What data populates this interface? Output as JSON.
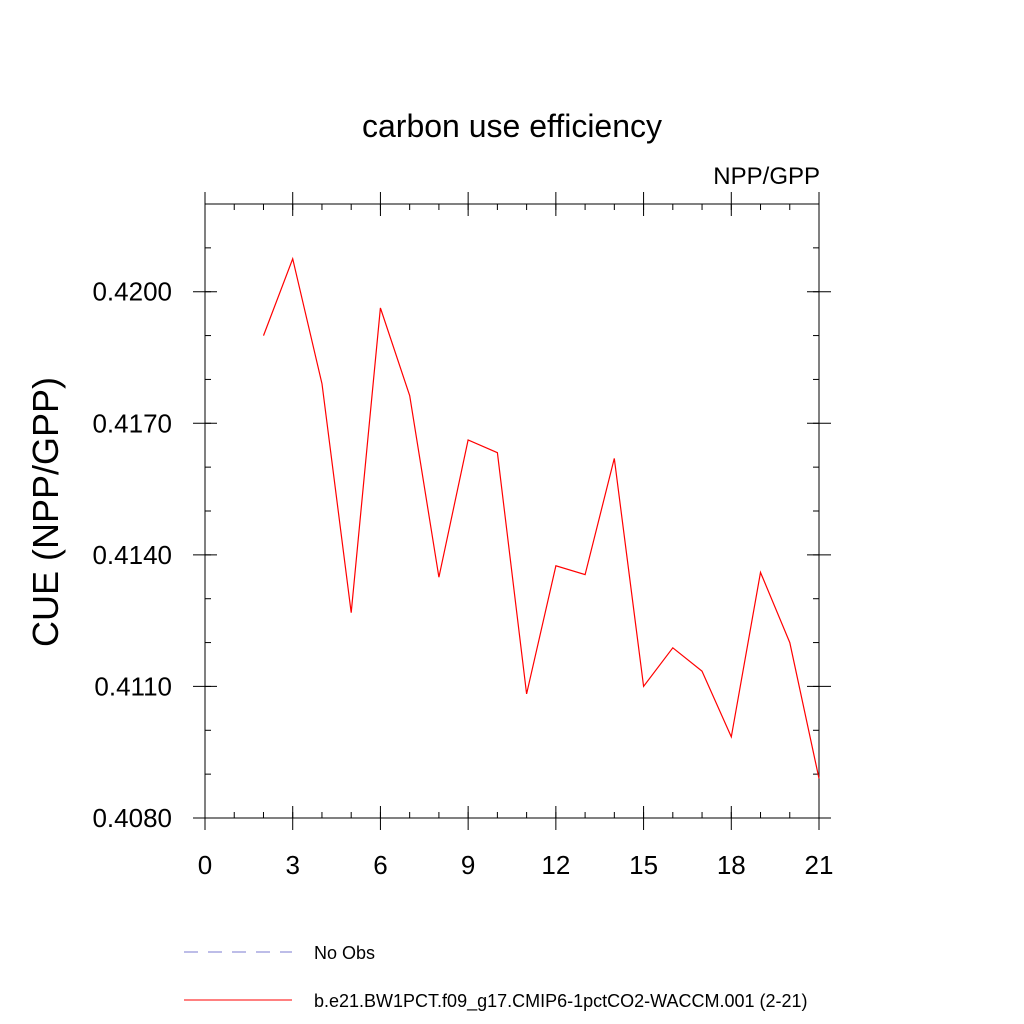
{
  "chart_data": {
    "type": "line",
    "title": "carbon use efficiency",
    "subtitle": "NPP/GPP",
    "xlabel": "",
    "ylabel": "CUE  (NPP/GPP)",
    "xlim": [
      0,
      21
    ],
    "ylim": [
      0.408,
      0.422
    ],
    "x_ticks": [
      0,
      3,
      6,
      9,
      12,
      15,
      18,
      21
    ],
    "x_tick_labels": [
      "0",
      "3",
      "6",
      "9",
      "12",
      "15",
      "18",
      "21"
    ],
    "x_minor_step": 1,
    "y_ticks": [
      0.408,
      0.411,
      0.414,
      0.417,
      0.42
    ],
    "y_tick_labels": [
      "0.4080",
      "0.4110",
      "0.4140",
      "0.4170",
      "0.4200"
    ],
    "y_minor_step": 0.001,
    "grid": false,
    "legend_position": "bottom-left",
    "series": [
      {
        "name": "No Obs",
        "color": "#7b7bd0",
        "style": "dashed",
        "x": [],
        "y": []
      },
      {
        "name": "b.e21.BW1PCT.f09_g17.CMIP6-1pctCO2-WACCM.001 (2-21)",
        "color": "#ff0000",
        "style": "solid",
        "x": [
          2,
          3,
          4,
          5,
          6,
          7,
          8,
          9,
          10,
          11,
          12,
          13,
          14,
          15,
          16,
          17,
          18,
          19,
          20,
          21
        ],
        "y": [
          0.419,
          0.42075,
          0.4179,
          0.41268,
          0.41963,
          0.41763,
          0.41349,
          0.41662,
          0.41633,
          0.41083,
          0.41375,
          0.41355,
          0.4162,
          0.411,
          0.41188,
          0.41135,
          0.40985,
          0.4136,
          0.412,
          0.4089
        ]
      }
    ]
  }
}
